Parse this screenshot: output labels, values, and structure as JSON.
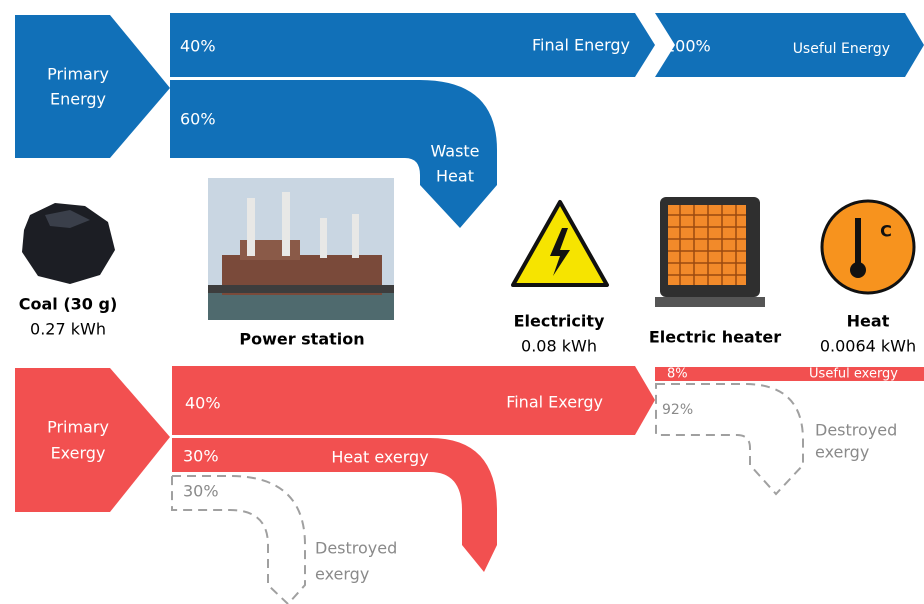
{
  "energy": {
    "primary": [
      "Primary",
      "Energy"
    ],
    "final": {
      "percent": "40%",
      "label": "Final Energy"
    },
    "waste": {
      "percent": "60%",
      "label": [
        "Waste",
        "Heat"
      ]
    },
    "useful": {
      "percent": "100%",
      "label": "Useful Energy"
    }
  },
  "stages": [
    {
      "name": "Coal (30 g)",
      "value": "0.27 kWh"
    },
    {
      "name": "Power station"
    },
    {
      "name": "Electricity",
      "value": "0.08 kWh"
    },
    {
      "name": "Electric heater"
    },
    {
      "name": "Heat",
      "value": "0.0064 kWh"
    }
  ],
  "exergy": {
    "primary": [
      "Primary",
      "Exergy"
    ],
    "final": {
      "percent": "40%",
      "label": "Final Exergy"
    },
    "heat": {
      "percent": "30%",
      "label": "Heat exergy"
    },
    "destroyed_1": {
      "percent": "30%",
      "label": [
        "Destroyed",
        "exergy"
      ]
    },
    "useful": {
      "percent": "8%",
      "label": "Useful exergy"
    },
    "destroyed_2": {
      "percent": "92%",
      "label": [
        "Destroyed",
        "exergy"
      ]
    }
  },
  "icons": {
    "heat_symbol": "C"
  }
}
